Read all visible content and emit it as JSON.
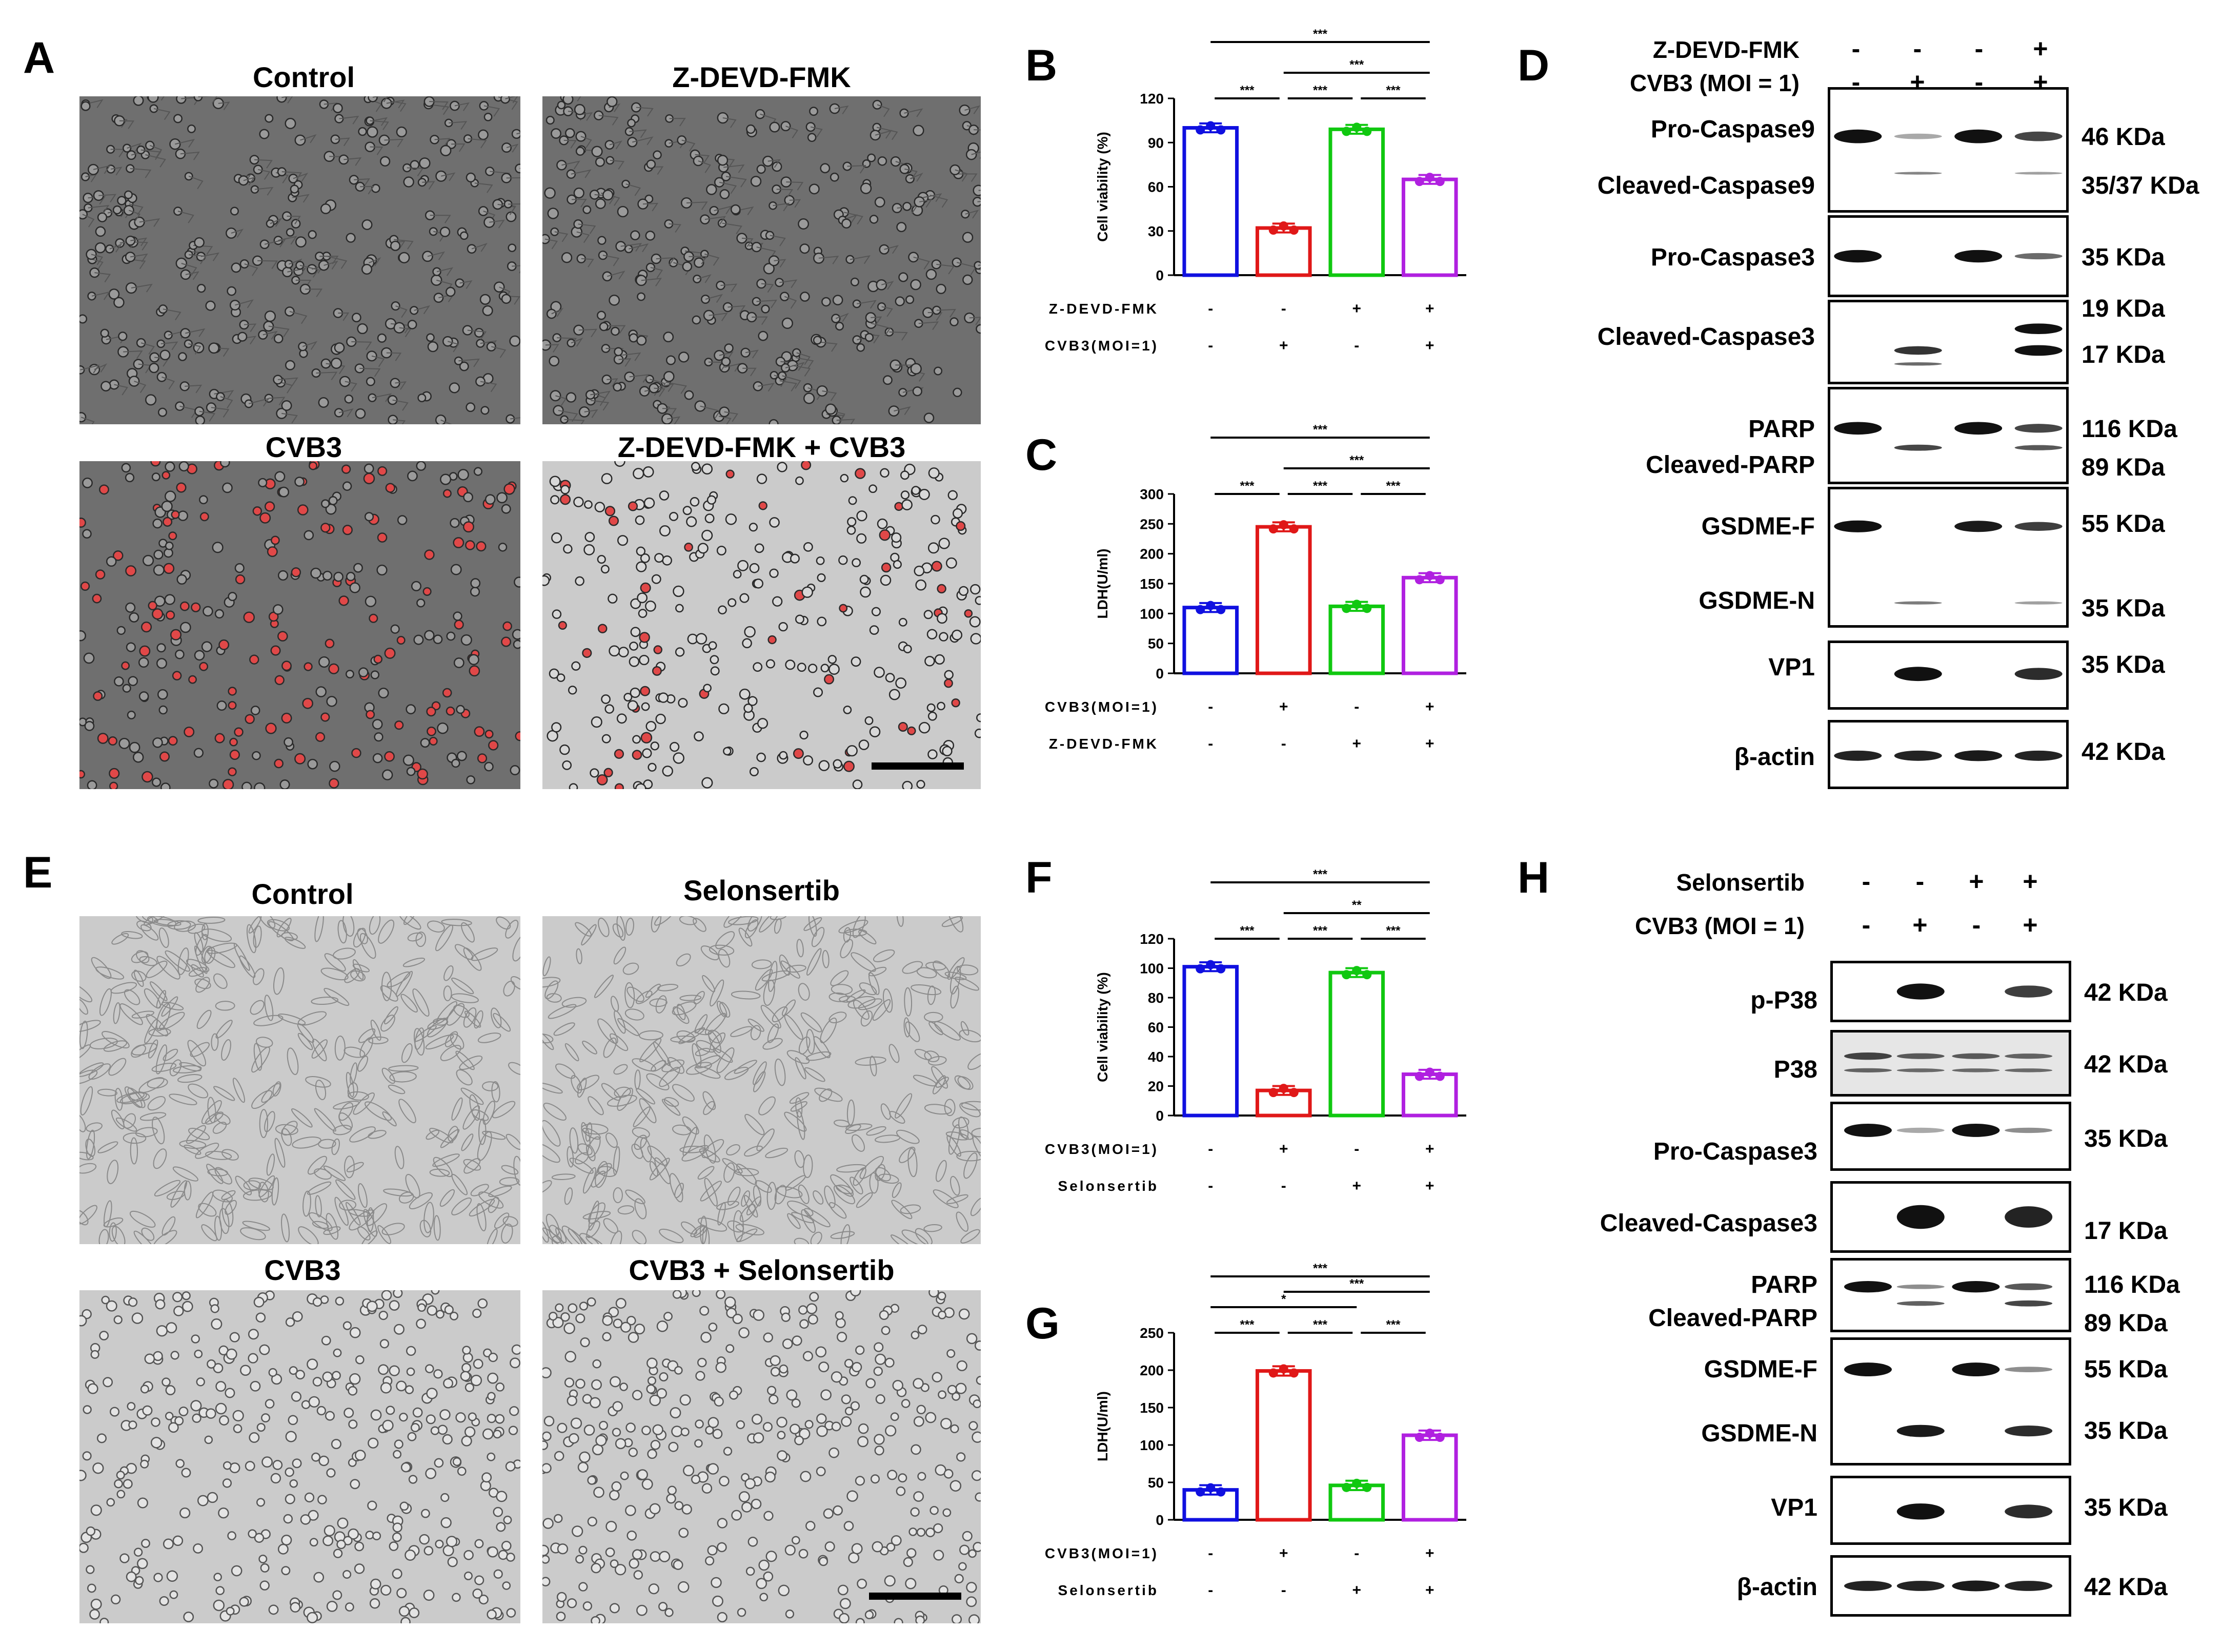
{
  "panels": {
    "A": {
      "label": "A",
      "titles": [
        "Control",
        "Z-DEVD-FMK",
        "CVB3",
        "Z-DEVD-FMK + CVB3"
      ]
    },
    "E": {
      "label": "E",
      "titles": [
        "Control",
        "Selonsertib",
        "CVB3",
        "CVB3 + Selonsertib"
      ]
    },
    "B": {
      "label": "B"
    },
    "C": {
      "label": "C"
    },
    "F": {
      "label": "F"
    },
    "G": {
      "label": "G"
    },
    "D": {
      "label": "D",
      "treatments": [
        {
          "name": "Z-DEVD-FMK",
          "signs": [
            "-",
            "-",
            "-",
            "+"
          ]
        },
        {
          "name": "CVB3 (MOI = 1)",
          "signs": [
            "-",
            "+",
            "-",
            "+"
          ]
        }
      ],
      "blots": [
        {
          "labels": [
            "Pro-Caspase9",
            "Cleaved-Caspase9"
          ],
          "kda": [
            "46 KDa",
            "35/37 KDa"
          ]
        },
        {
          "labels": [
            "Pro-Caspase3"
          ],
          "kda": [
            "35 KDa"
          ]
        },
        {
          "labels": [
            "Cleaved-Caspase3"
          ],
          "kda": [
            "19 KDa",
            "17 KDa"
          ]
        },
        {
          "labels": [
            "PARP",
            "Cleaved-PARP"
          ],
          "kda": [
            "116 KDa",
            "89 KDa"
          ]
        },
        {
          "labels": [
            "GSDME-F",
            "GSDME-N"
          ],
          "kda": [
            "55 KDa",
            "35 KDa"
          ]
        },
        {
          "labels": [
            "VP1"
          ],
          "kda": [
            "35 KDa"
          ]
        },
        {
          "labels": [
            "β-actin"
          ],
          "kda": [
            "42 KDa"
          ]
        }
      ]
    },
    "H": {
      "label": "H",
      "treatments": [
        {
          "name": "Selonsertib",
          "signs": [
            "-",
            "-",
            "+",
            "+"
          ]
        },
        {
          "name": "CVB3 (MOI = 1)",
          "signs": [
            "-",
            "+",
            "-",
            "+"
          ]
        }
      ],
      "blots": [
        {
          "labels": [
            "p-P38"
          ],
          "kda": [
            "42 KDa"
          ]
        },
        {
          "labels": [
            "P38"
          ],
          "kda": [
            "42 KDa"
          ]
        },
        {
          "labels": [
            "Pro-Caspase3"
          ],
          "kda": [
            "35 KDa"
          ]
        },
        {
          "labels": [
            "Cleaved-Caspase3"
          ],
          "kda": [
            "17 KDa"
          ]
        },
        {
          "labels": [
            "PARP",
            "Cleaved-PARP"
          ],
          "kda": [
            "116 KDa",
            "89 KDa"
          ]
        },
        {
          "labels": [
            "GSDME-F",
            "GSDME-N"
          ],
          "kda": [
            "55 KDa",
            "35 KDa"
          ]
        },
        {
          "labels": [
            "VP1"
          ],
          "kda": [
            "35 KDa"
          ]
        },
        {
          "labels": [
            "β-actin"
          ],
          "kda": [
            "42 KDa"
          ]
        }
      ]
    }
  },
  "chart_data": [
    {
      "panel": "B",
      "type": "bar",
      "ylabel": "Cell viability (%)",
      "ylim": [
        0,
        120
      ],
      "yticks": [
        0,
        30,
        60,
        90,
        120
      ],
      "values": [
        100,
        32,
        99,
        65
      ],
      "colors": [
        "#1010e0",
        "#e01818",
        "#10c810",
        "#b020e0"
      ],
      "treatments": [
        {
          "name": "Z-DEVD-FMK",
          "signs": [
            "-",
            "-",
            "+",
            "+"
          ]
        },
        {
          "name": "CVB3(MOI=1)",
          "signs": [
            "-",
            "+",
            "-",
            "+"
          ]
        }
      ],
      "significance": [
        {
          "from": 0,
          "to": 1,
          "label": "***"
        },
        {
          "from": 1,
          "to": 2,
          "label": "***"
        },
        {
          "from": 2,
          "to": 3,
          "label": "***"
        },
        {
          "from": 1,
          "to": 3,
          "label": "***"
        },
        {
          "from": 0,
          "to": 3,
          "label": "***"
        }
      ]
    },
    {
      "panel": "C",
      "type": "bar",
      "ylabel": "LDH(U/ml)",
      "ylim": [
        0,
        300
      ],
      "yticks": [
        0,
        50,
        100,
        150,
        200,
        250,
        300
      ],
      "values": [
        110,
        245,
        112,
        160
      ],
      "colors": [
        "#1010e0",
        "#e01818",
        "#10c810",
        "#b020e0"
      ],
      "treatments": [
        {
          "name": "CVB3(MOI=1)",
          "signs": [
            "-",
            "+",
            "-",
            "+"
          ]
        },
        {
          "name": "Z-DEVD-FMK",
          "signs": [
            "-",
            "-",
            "+",
            "+"
          ]
        }
      ],
      "significance": [
        {
          "from": 0,
          "to": 1,
          "label": "***"
        },
        {
          "from": 1,
          "to": 2,
          "label": "***"
        },
        {
          "from": 2,
          "to": 3,
          "label": "***"
        },
        {
          "from": 1,
          "to": 3,
          "label": "***"
        },
        {
          "from": 0,
          "to": 3,
          "label": "***"
        }
      ]
    },
    {
      "panel": "F",
      "type": "bar",
      "ylabel": "Cell viability (%)",
      "ylim": [
        0,
        120
      ],
      "yticks": [
        0,
        20,
        40,
        60,
        80,
        100,
        120
      ],
      "values": [
        101,
        17,
        97,
        28
      ],
      "colors": [
        "#1010e0",
        "#e01818",
        "#10c810",
        "#b020e0"
      ],
      "treatments": [
        {
          "name": "CVB3(MOI=1)",
          "signs": [
            "-",
            "+",
            "-",
            "+"
          ]
        },
        {
          "name": "Selonsertib",
          "signs": [
            "-",
            "-",
            "+",
            "+"
          ]
        }
      ],
      "significance": [
        {
          "from": 0,
          "to": 1,
          "label": "***"
        },
        {
          "from": 1,
          "to": 2,
          "label": "***"
        },
        {
          "from": 2,
          "to": 3,
          "label": "***"
        },
        {
          "from": 1,
          "to": 3,
          "label": "**"
        },
        {
          "from": 0,
          "to": 3,
          "label": "***"
        }
      ]
    },
    {
      "panel": "G",
      "type": "bar",
      "ylabel": "LDH(U/ml)",
      "ylim": [
        0,
        250
      ],
      "yticks": [
        0,
        50,
        100,
        150,
        200,
        250
      ],
      "values": [
        40,
        199,
        46,
        113
      ],
      "colors": [
        "#1010e0",
        "#e01818",
        "#10c810",
        "#b020e0"
      ],
      "treatments": [
        {
          "name": "CVB3(MOI=1)",
          "signs": [
            "-",
            "+",
            "-",
            "+"
          ]
        },
        {
          "name": "Selonsertib",
          "signs": [
            "-",
            "-",
            "+",
            "+"
          ]
        }
      ],
      "significance": [
        {
          "from": 0,
          "to": 1,
          "label": "***"
        },
        {
          "from": 1,
          "to": 2,
          "label": "***"
        },
        {
          "from": 2,
          "to": 3,
          "label": "***"
        },
        {
          "from": 0,
          "to": 2,
          "label": "*"
        },
        {
          "from": 1,
          "to": 3,
          "label": "***"
        },
        {
          "from": 0,
          "to": 3,
          "label": "***"
        }
      ]
    }
  ]
}
